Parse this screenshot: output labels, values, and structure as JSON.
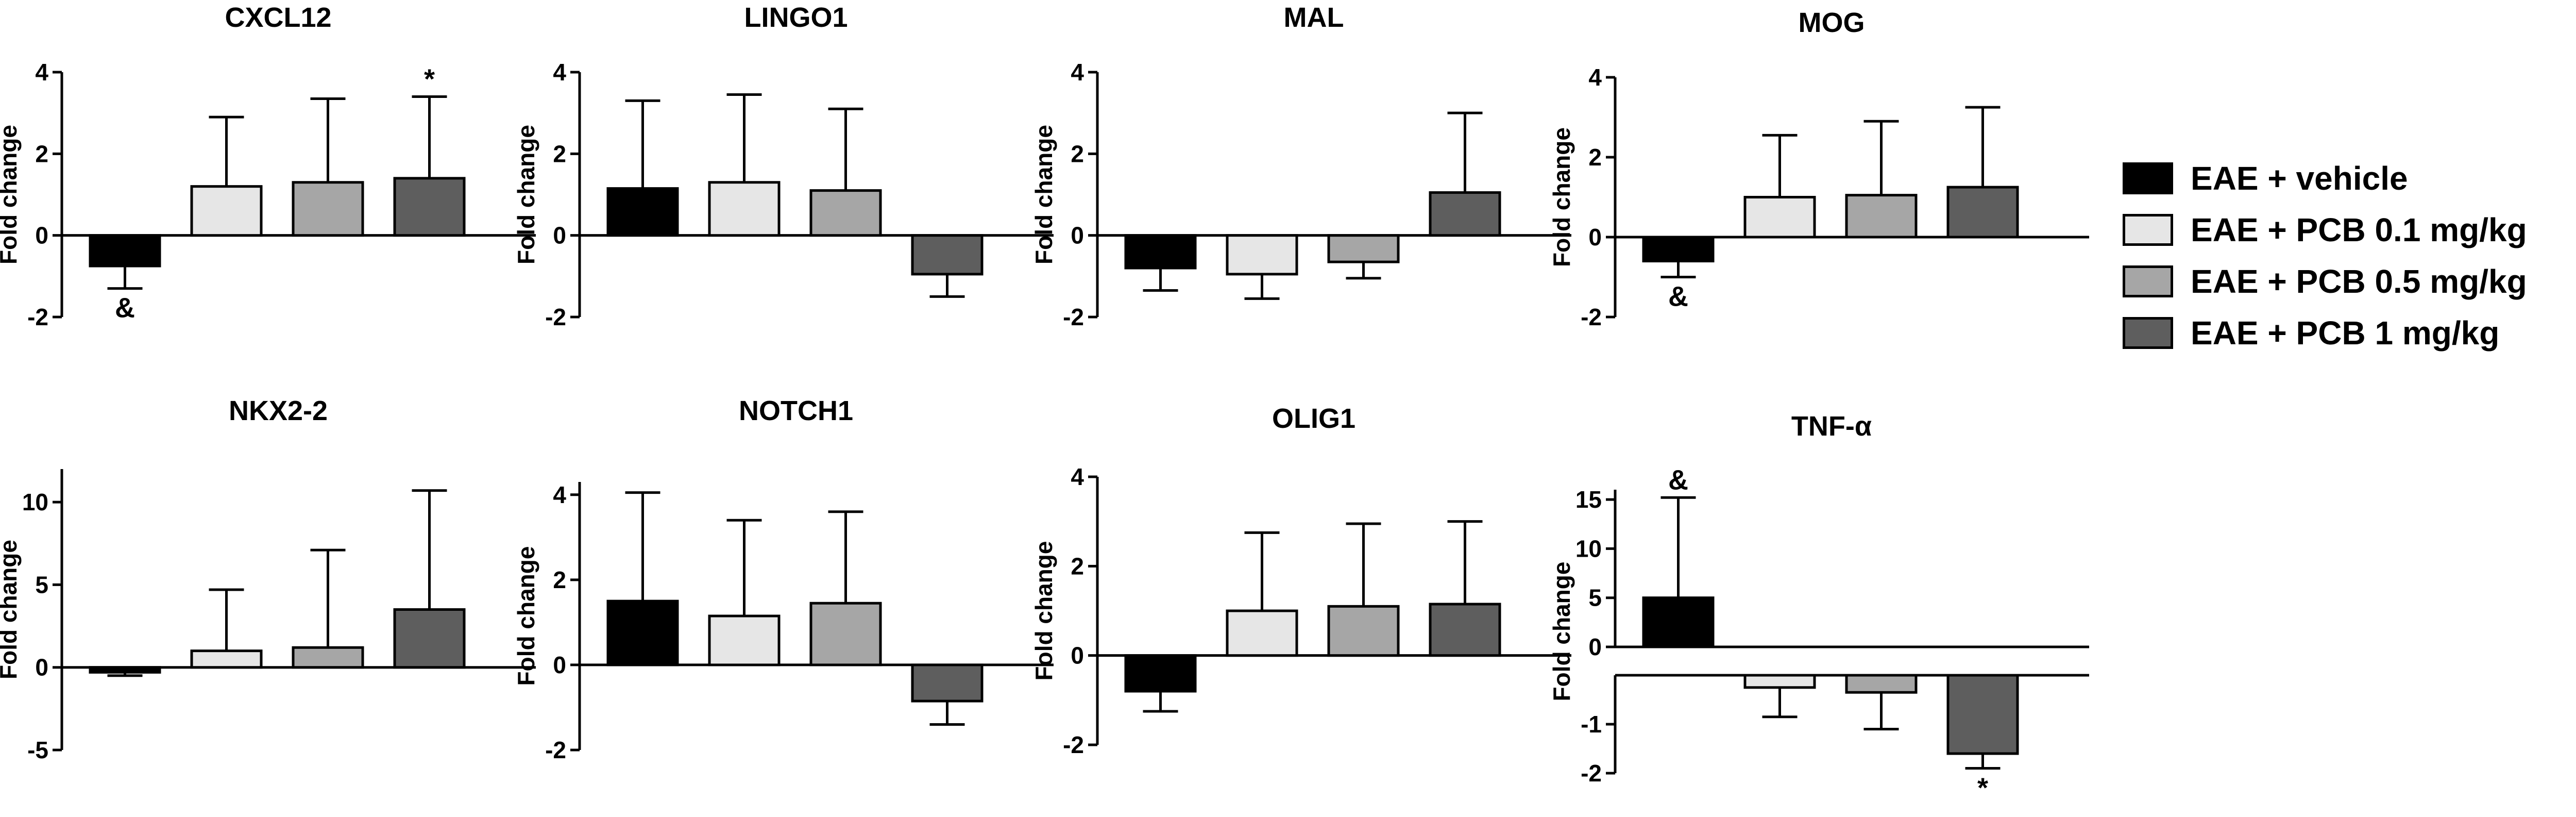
{
  "legend": [
    {
      "label": "EAE + vehicle",
      "color": "#000000"
    },
    {
      "label": "EAE + PCB 0.1 mg/kg",
      "color": "#e6e6e6"
    },
    {
      "label": "EAE + PCB 0.5 mg/kg",
      "color": "#a6a6a6"
    },
    {
      "label": "EAE + PCB 1 mg/kg",
      "color": "#5e5e5e"
    }
  ],
  "chart_data": [
    {
      "type": "bar",
      "title": "CXCL12",
      "ylabel": "Fold change",
      "ylim": [
        -2,
        4
      ],
      "yticks": [
        "-2",
        "0",
        "2",
        "4"
      ],
      "series": [
        {
          "name": "EAE + vehicle",
          "value": -0.75,
          "error": 0.55,
          "annotation": "&"
        },
        {
          "name": "EAE + PCB 0.1 mg/kg",
          "value": 1.2,
          "error": 1.7
        },
        {
          "name": "EAE + PCB 0.5 mg/kg",
          "value": 1.3,
          "error": 2.05
        },
        {
          "name": "EAE + PCB 1 mg/kg",
          "value": 1.4,
          "error": 2.0,
          "annotation": "*"
        }
      ]
    },
    {
      "type": "bar",
      "title": "LINGO1",
      "ylabel": "Fold change",
      "ylim": [
        -2,
        4
      ],
      "yticks": [
        "-2",
        "0",
        "2",
        "4"
      ],
      "series": [
        {
          "name": "EAE + vehicle",
          "value": 1.15,
          "error": 2.15
        },
        {
          "name": "EAE + PCB 0.1 mg/kg",
          "value": 1.3,
          "error": 2.15
        },
        {
          "name": "EAE + PCB 0.5 mg/kg",
          "value": 1.1,
          "error": 2.0
        },
        {
          "name": "EAE + PCB 1 mg/kg",
          "value": -0.95,
          "error": 0.55
        }
      ]
    },
    {
      "type": "bar",
      "title": "MAL",
      "ylabel": "Fold change",
      "ylim": [
        -2,
        4
      ],
      "yticks": [
        "-2",
        "0",
        "2",
        "4"
      ],
      "series": [
        {
          "name": "EAE + vehicle",
          "value": -0.8,
          "error": 0.55
        },
        {
          "name": "EAE + PCB 0.1 mg/kg",
          "value": -0.95,
          "error": 0.6
        },
        {
          "name": "EAE + PCB 0.5 mg/kg",
          "value": -0.65,
          "error": 0.4
        },
        {
          "name": "EAE + PCB 1 mg/kg",
          "value": 1.05,
          "error": 1.95
        }
      ]
    },
    {
      "type": "bar",
      "title": "MOG",
      "ylabel": "Fold change",
      "ylim": [
        -2,
        4
      ],
      "yticks": [
        "-2",
        "0",
        "2",
        "4"
      ],
      "series": [
        {
          "name": "EAE + vehicle",
          "value": -0.6,
          "error": 0.4,
          "annotation": "&"
        },
        {
          "name": "EAE + PCB 0.1 mg/kg",
          "value": 1.0,
          "error": 1.55
        },
        {
          "name": "EAE + PCB 0.5 mg/kg",
          "value": 1.05,
          "error": 1.85
        },
        {
          "name": "EAE + PCB 1 mg/kg",
          "value": 1.25,
          "error": 2.0
        }
      ]
    },
    {
      "type": "bar",
      "title": "NKX2-2",
      "ylabel": "Fold change",
      "ylim": [
        -5,
        12
      ],
      "yticks": [
        "-5",
        "0",
        "5",
        "10"
      ],
      "series": [
        {
          "name": "EAE + vehicle",
          "value": -0.3,
          "error": 0.2
        },
        {
          "name": "EAE + PCB 0.1 mg/kg",
          "value": 1.0,
          "error": 3.7
        },
        {
          "name": "EAE + PCB 0.5 mg/kg",
          "value": 1.2,
          "error": 5.9
        },
        {
          "name": "EAE + PCB 1 mg/kg",
          "value": 3.5,
          "error": 7.2
        }
      ]
    },
    {
      "type": "bar",
      "title": "NOTCH1",
      "ylabel": "Fold change",
      "ylim": [
        -2,
        4.3
      ],
      "yticks": [
        "-2",
        "0",
        "2",
        "4"
      ],
      "series": [
        {
          "name": "EAE + vehicle",
          "value": 1.5,
          "error": 2.55
        },
        {
          "name": "EAE + PCB 0.1 mg/kg",
          "value": 1.15,
          "error": 2.25
        },
        {
          "name": "EAE + PCB 0.5 mg/kg",
          "value": 1.45,
          "error": 2.15
        },
        {
          "name": "EAE + PCB 1 mg/kg",
          "value": -0.85,
          "error": 0.55
        }
      ]
    },
    {
      "type": "bar",
      "title": "OLIG1",
      "ylabel": "Fold change",
      "ylim": [
        -2,
        4
      ],
      "yticks": [
        "-2",
        "0",
        "2",
        "4"
      ],
      "series": [
        {
          "name": "EAE + vehicle",
          "value": -0.8,
          "error": 0.45
        },
        {
          "name": "EAE + PCB 0.1 mg/kg",
          "value": 1.0,
          "error": 1.75
        },
        {
          "name": "EAE + PCB 0.5 mg/kg",
          "value": 1.1,
          "error": 1.85
        },
        {
          "name": "EAE + PCB 1 mg/kg",
          "value": 1.15,
          "error": 1.85
        }
      ]
    },
    {
      "type": "bar",
      "title": "TNF-α",
      "ylabel": "Fold change",
      "broken_axis": true,
      "upper_ylim": [
        0,
        16
      ],
      "upper_yticks": [
        "0",
        "5",
        "10",
        "15"
      ],
      "lower_ylim": [
        -2,
        0
      ],
      "lower_yticks": [
        "-1",
        "-2"
      ],
      "series": [
        {
          "name": "EAE + vehicle",
          "value": 5.0,
          "error": 10.2,
          "annotation": "&"
        },
        {
          "name": "EAE + PCB 0.1 mg/kg",
          "value": -0.25,
          "error": 0.6
        },
        {
          "name": "EAE + PCB 0.5 mg/kg",
          "value": -0.35,
          "error": 0.75
        },
        {
          "name": "EAE + PCB 1 mg/kg",
          "value": -1.6,
          "error": 0.3,
          "annotation": "*"
        }
      ]
    }
  ]
}
